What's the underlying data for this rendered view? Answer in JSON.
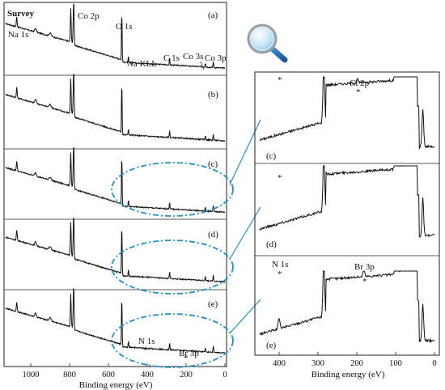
{
  "chart_data": [
    {
      "type": "line",
      "title": "Survey",
      "xlabel": "Binding energy (eV)",
      "ylabel": "",
      "xlim": [
        1150,
        0
      ],
      "x_ticks": [
        1000,
        800,
        600,
        400,
        200,
        0
      ],
      "tick_labels": [
        "1000",
        "800",
        "600",
        "400",
        "200",
        "0"
      ],
      "grid": false,
      "panels": [
        {
          "label": "(a)",
          "annotations": [
            {
              "text": "Na 1s",
              "x": 1072
            },
            {
              "text": "Co 2p",
              "x": 780
            },
            {
              "text": "O 1s",
              "x": 531
            },
            {
              "text": "Na KLL",
              "x": 497
            },
            {
              "text": "C 1s",
              "x": 285
            },
            {
              "text": "Co 3s",
              "x": 101
            },
            {
              "text": "Co 3p",
              "x": 60
            }
          ]
        },
        {
          "label": "(b)",
          "annotations": []
        },
        {
          "label": "(c)",
          "annotations": []
        },
        {
          "label": "(d)",
          "annotations": []
        },
        {
          "label": "(e)",
          "annotations": [
            {
              "text": "N 1s",
              "x": 400
            },
            {
              "text": "Br 3p",
              "x": 182
            }
          ]
        }
      ],
      "peaks": [
        {
          "x": 1072,
          "h": 0.16
        },
        {
          "x": 794,
          "h": 0.55
        },
        {
          "x": 779,
          "h": 0.75
        },
        {
          "x": 531,
          "h": 0.85
        },
        {
          "x": 497,
          "h": 0.1
        },
        {
          "x": 285,
          "h": 0.12
        },
        {
          "x": 101,
          "h": 0.07
        },
        {
          "x": 60,
          "h": 0.1
        }
      ]
    },
    {
      "type": "line",
      "title": "",
      "xlabel": "Binding energy (eV)",
      "ylabel": "",
      "xlim": [
        450,
        0
      ],
      "x_ticks": [
        400,
        300,
        200,
        100,
        0
      ],
      "tick_labels": [
        "400",
        "300",
        "200",
        "100",
        "0"
      ],
      "grid": false,
      "panels": [
        {
          "label": "(c)",
          "annotations": [
            {
              "text": "*",
              "x": 400
            },
            {
              "text": "Cl 2p",
              "x": 199
            },
            {
              "text": "*",
              "x": 199
            }
          ]
        },
        {
          "label": "(d)",
          "annotations": [
            {
              "text": "*",
              "x": 400
            }
          ]
        },
        {
          "label": "(e)",
          "annotations": [
            {
              "text": "N 1s",
              "x": 400
            },
            {
              "text": "*",
              "x": 400
            },
            {
              "text": "Br 3p",
              "x": 182
            },
            {
              "text": "*",
              "x": 182
            }
          ]
        }
      ]
    }
  ],
  "extra_labels": {
    "star_n": "*",
    "star_br": "*"
  },
  "icons": {
    "zoom": "magnifier-icon"
  },
  "colors": {
    "callout": "#1f8fc8",
    "line": "#111111",
    "glass": "#8ecbea"
  }
}
